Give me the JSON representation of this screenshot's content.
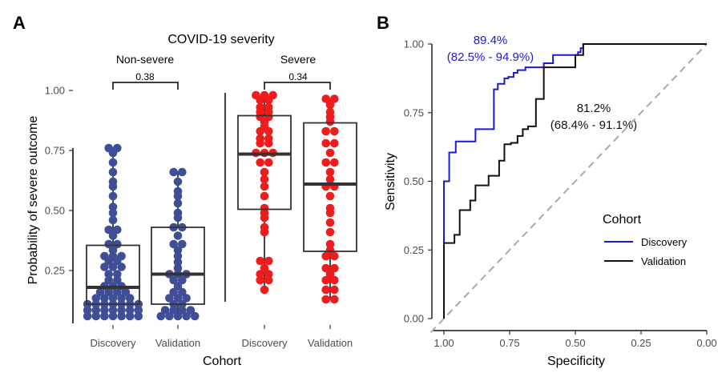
{
  "panels": {
    "a": "A",
    "b": "B"
  },
  "chart_data": [
    {
      "type": "box",
      "title": "COVID-19 severity",
      "xlabel": "Cohort",
      "ylabel": "Probability of severe outcome",
      "ylim": [
        0.05,
        1.05
      ],
      "yticks": [
        0.25,
        0.5,
        0.75,
        1.0
      ],
      "ytick_labels": [
        "0.25",
        "0.50",
        "0.75",
        "1.00"
      ],
      "colors": {
        "Non-severe": "#3f4f97",
        "Severe": "#ee1c1c"
      },
      "facets": [
        {
          "label": "Non-severe",
          "pvalue": "0.38",
          "groups": [
            {
              "name": "Discovery",
              "q1": 0.11,
              "median": 0.18,
              "q3": 0.355,
              "whisker_low": 0.06,
              "whisker_high": 0.76,
              "points": [
                0.06,
                0.06,
                0.06,
                0.06,
                0.06,
                0.06,
                0.06,
                0.085,
                0.085,
                0.085,
                0.085,
                0.085,
                0.085,
                0.085,
                0.11,
                0.11,
                0.11,
                0.11,
                0.11,
                0.11,
                0.11,
                0.135,
                0.135,
                0.135,
                0.135,
                0.135,
                0.16,
                0.16,
                0.16,
                0.16,
                0.185,
                0.185,
                0.185,
                0.21,
                0.21,
                0.235,
                0.235,
                0.265,
                0.265,
                0.265,
                0.29,
                0.29,
                0.31,
                0.31,
                0.31,
                0.335,
                0.36,
                0.36,
                0.395,
                0.42,
                0.42,
                0.46,
                0.49,
                0.515,
                0.56,
                0.6,
                0.62,
                0.66,
                0.7,
                0.74,
                0.76,
                0.76
              ]
            },
            {
              "name": "Validation",
              "q1": 0.11,
              "median": 0.235,
              "q3": 0.43,
              "whisker_low": 0.06,
              "whisker_high": 0.66,
              "points": [
                0.06,
                0.06,
                0.06,
                0.06,
                0.06,
                0.085,
                0.085,
                0.085,
                0.085,
                0.11,
                0.11,
                0.135,
                0.135,
                0.135,
                0.16,
                0.16,
                0.185,
                0.21,
                0.21,
                0.235,
                0.235,
                0.235,
                0.26,
                0.285,
                0.31,
                0.335,
                0.36,
                0.36,
                0.395,
                0.43,
                0.43,
                0.47,
                0.49,
                0.53,
                0.56,
                0.58,
                0.62,
                0.66,
                0.66
              ]
            }
          ]
        },
        {
          "label": "Severe",
          "pvalue": "0.34",
          "groups": [
            {
              "name": "Discovery",
              "q1": 0.505,
              "median": 0.735,
              "q3": 0.895,
              "whisker_low": 0.17,
              "whisker_high": 0.98,
              "points": [
                0.17,
                0.21,
                0.21,
                0.235,
                0.235,
                0.26,
                0.29,
                0.29,
                0.41,
                0.43,
                0.47,
                0.49,
                0.51,
                0.56,
                0.6,
                0.63,
                0.66,
                0.7,
                0.7,
                0.74,
                0.74,
                0.74,
                0.78,
                0.78,
                0.8,
                0.8,
                0.83,
                0.83,
                0.85,
                0.87,
                0.89,
                0.89,
                0.91,
                0.91,
                0.93,
                0.93,
                0.96,
                0.96,
                0.98,
                0.98,
                0.98
              ]
            },
            {
              "name": "Validation",
              "q1": 0.33,
              "median": 0.61,
              "q3": 0.865,
              "whisker_low": 0.13,
              "whisker_high": 0.965,
              "points": [
                0.13,
                0.13,
                0.17,
                0.17,
                0.21,
                0.21,
                0.235,
                0.26,
                0.26,
                0.31,
                0.31,
                0.335,
                0.36,
                0.41,
                0.45,
                0.49,
                0.51,
                0.56,
                0.6,
                0.6,
                0.63,
                0.66,
                0.7,
                0.7,
                0.74,
                0.78,
                0.78,
                0.83,
                0.83,
                0.87,
                0.89,
                0.91,
                0.94,
                0.965,
                0.965
              ]
            }
          ]
        }
      ]
    },
    {
      "type": "line",
      "xlabel": "Specificity",
      "ylabel": "Sensitivity",
      "xlim": [
        1.0,
        0.0
      ],
      "ylim": [
        0.0,
        1.0
      ],
      "xticks": [
        1.0,
        0.75,
        0.5,
        0.25,
        0.0
      ],
      "xtick_labels": [
        "1.00",
        "0.75",
        "0.50",
        "0.25",
        "0.00"
      ],
      "yticks": [
        0.0,
        0.25,
        0.5,
        0.75,
        1.0
      ],
      "ytick_labels": [
        "0.00",
        "0.25",
        "0.50",
        "0.75",
        "1.00"
      ],
      "legend": {
        "title": "Cohort",
        "position": "right"
      },
      "series": [
        {
          "name": "Discovery",
          "color": "#1b1bd6",
          "annotation_line1": "89.4%",
          "annotation_line2": "(82.5% - 94.9%)",
          "x": [
            1.0,
            1.0,
            0.98,
            0.98,
            0.955,
            0.955,
            0.88,
            0.88,
            0.81,
            0.81,
            0.795,
            0.795,
            0.77,
            0.77,
            0.755,
            0.755,
            0.735,
            0.735,
            0.72,
            0.72,
            0.69,
            0.69,
            0.62,
            0.62,
            0.585,
            0.585,
            0.49,
            0.49,
            0.48,
            0.48,
            0.47,
            0.47,
            0.0
          ],
          "y": [
            0.0,
            0.5,
            0.5,
            0.605,
            0.605,
            0.645,
            0.645,
            0.69,
            0.69,
            0.835,
            0.835,
            0.855,
            0.855,
            0.875,
            0.875,
            0.88,
            0.88,
            0.895,
            0.895,
            0.905,
            0.905,
            0.915,
            0.915,
            0.93,
            0.93,
            0.96,
            0.96,
            0.97,
            0.97,
            0.985,
            0.985,
            1.0,
            1.0
          ]
        },
        {
          "name": "Validation",
          "color": "#111111",
          "annotation_line1": "81.2%",
          "annotation_line2": "(68.4% - 91.1%)",
          "x": [
            1.0,
            1.0,
            0.99,
            0.99,
            0.96,
            0.96,
            0.94,
            0.94,
            0.9,
            0.9,
            0.88,
            0.88,
            0.86,
            0.86,
            0.83,
            0.83,
            0.79,
            0.79,
            0.77,
            0.77,
            0.745,
            0.745,
            0.72,
            0.72,
            0.7,
            0.7,
            0.68,
            0.68,
            0.65,
            0.65,
            0.62,
            0.62,
            0.6,
            0.6,
            0.5,
            0.5,
            0.47,
            0.47,
            0.0
          ],
          "y": [
            0.0,
            0.275,
            0.275,
            0.275,
            0.275,
            0.305,
            0.305,
            0.395,
            0.395,
            0.43,
            0.43,
            0.485,
            0.485,
            0.485,
            0.485,
            0.52,
            0.52,
            0.575,
            0.575,
            0.635,
            0.635,
            0.64,
            0.64,
            0.665,
            0.665,
            0.69,
            0.69,
            0.7,
            0.7,
            0.8,
            0.8,
            0.915,
            0.915,
            0.915,
            0.915,
            0.96,
            0.96,
            1.0,
            1.0
          ]
        }
      ]
    }
  ]
}
